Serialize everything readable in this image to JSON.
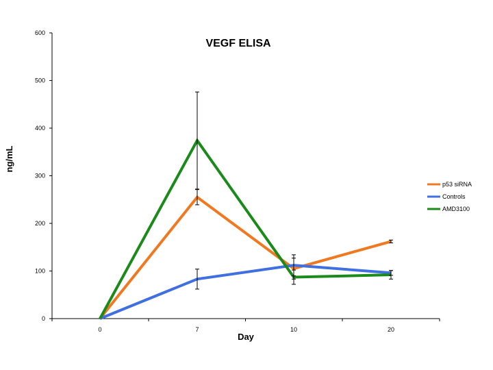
{
  "chart_data": {
    "type": "line",
    "title": "VEGF ELISA",
    "xlabel": "Day",
    "ylabel": "ng/mL",
    "categories": [
      "0",
      "7",
      "10",
      "20"
    ],
    "ylim": [
      0,
      600
    ],
    "yticks": [
      0,
      100,
      200,
      300,
      400,
      500,
      600
    ],
    "grid": false,
    "legend_position": "right",
    "series": [
      {
        "name": "p53 siRNA",
        "color": "#F07820",
        "values": [
          0,
          255,
          105,
          162
        ],
        "error": [
          0,
          16,
          22,
          3
        ]
      },
      {
        "name": "Controls",
        "color": "#3F6FE0",
        "values": [
          0,
          83,
          112,
          96
        ],
        "error": [
          0,
          21,
          22,
          5
        ]
      },
      {
        "name": "AMD3100",
        "color": "#1A8A1A",
        "values": [
          0,
          374,
          87,
          92
        ],
        "error": [
          0,
          102,
          15,
          9
        ]
      }
    ]
  }
}
